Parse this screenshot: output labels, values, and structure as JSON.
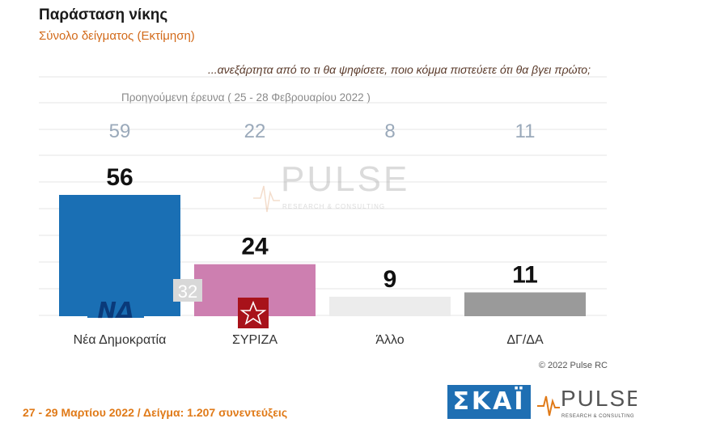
{
  "title": "Παράσταση νίκης",
  "subtitle": "Σύνολο δείγματος   (Εκτίμηση)",
  "question": "...ανεξάρτητα από το τι θα ψηφίσετε, ποιο κόμμα πιστεύετε ότι θα βγει πρώτο;",
  "previous_caption": "Προηγούμενη έρευνα  ( 25 - 28 Φεβρουαρίου  2022 )",
  "footer_date": "27 - 29  Μαρτίου  2022  /  Δείγμα:  1.207 συνεντεύξεις",
  "copyright": "© 2022 Pulse RC",
  "watermark": {
    "word": "PULSE",
    "sub": "RESEARCH & CONSULTING"
  },
  "logos": {
    "skai": "ΣΚΑΪ",
    "pulse": "PULSE",
    "pulse_sub": "RESEARCH & CONSULTING",
    "nd": "ΝΔ",
    "syriza_icon": "syriza-star"
  },
  "chart_data": {
    "type": "bar",
    "categories": [
      "Νέα Δημοκρατία",
      "ΣΥΡΙΖΑ",
      "Άλλο",
      "ΔΓ/ΔΑ"
    ],
    "values": [
      56,
      24,
      9,
      11
    ],
    "previous_values": [
      59,
      22,
      8,
      11
    ],
    "colors": [
      "#1a6fb4",
      "#cd7fb0",
      "#ececec",
      "#9a9a9a"
    ],
    "inner_label": "32",
    "ylim": [
      0,
      60
    ],
    "grid": true
  }
}
